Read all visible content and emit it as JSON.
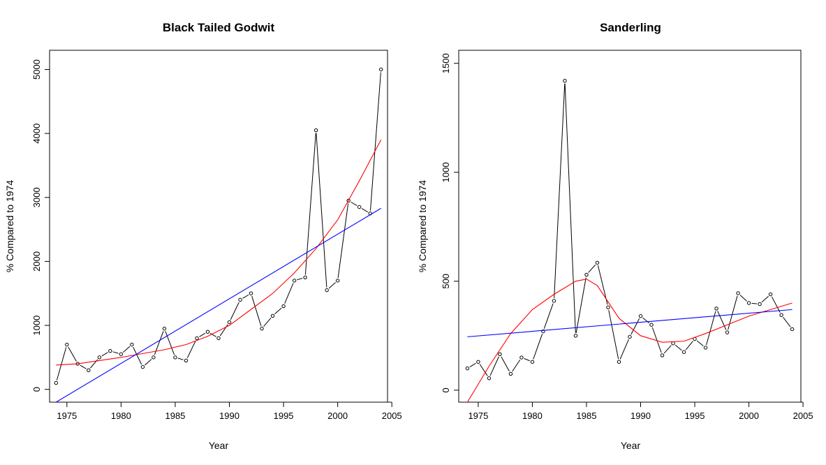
{
  "chart_data": [
    {
      "type": "line",
      "title": "Black Tailed Godwit",
      "xlabel": "Year",
      "ylabel": "% Compared to 1974",
      "xlim": [
        1973.4,
        2004.6
      ],
      "ylim": [
        -200,
        5300
      ],
      "xticks": [
        1975,
        1980,
        1985,
        1990,
        1995,
        2000,
        2005
      ],
      "yticks": [
        0,
        1000,
        2000,
        3000,
        4000,
        5000
      ],
      "grid": false,
      "observed": {
        "x": [
          1974,
          1975,
          1976,
          1977,
          1978,
          1979,
          1980,
          1981,
          1982,
          1983,
          1984,
          1985,
          1986,
          1987,
          1988,
          1989,
          1990,
          1991,
          1992,
          1993,
          1994,
          1995,
          1996,
          1997,
          1998,
          1999,
          2000,
          2001,
          2002,
          2003,
          2004
        ],
        "y": [
          100,
          700,
          400,
          300,
          500,
          600,
          550,
          700,
          350,
          500,
          950,
          500,
          450,
          800,
          900,
          800,
          1050,
          1400,
          1500,
          950,
          1150,
          1300,
          1700,
          1750,
          4050,
          1550,
          1700,
          2950,
          2850,
          2750,
          5000
        ],
        "color": "#000000"
      },
      "smooth": {
        "x": [
          1974,
          1976,
          1978,
          1980,
          1982,
          1984,
          1986,
          1988,
          1990,
          1992,
          1994,
          1996,
          1998,
          2000,
          2002,
          2004
        ],
        "y": [
          380,
          400,
          450,
          500,
          560,
          620,
          700,
          830,
          1000,
          1250,
          1500,
          1820,
          2200,
          2650,
          3260,
          3900
        ],
        "color": "#ff0000"
      },
      "linear": {
        "x": [
          1974,
          2004
        ],
        "y": [
          -200,
          2830
        ],
        "color": "#0000ff"
      }
    },
    {
      "type": "line",
      "title": "Sanderling",
      "xlabel": "Year",
      "ylabel": "% Compared to 1974",
      "xlim": [
        1973.2,
        2004.8
      ],
      "ylim": [
        -55,
        1560
      ],
      "xticks": [
        1975,
        1980,
        1985,
        1990,
        1995,
        2000,
        2005
      ],
      "yticks": [
        0,
        500,
        1000,
        1500
      ],
      "grid": false,
      "observed": {
        "x": [
          1974,
          1975,
          1976,
          1977,
          1978,
          1979,
          1980,
          1981,
          1982,
          1983,
          1984,
          1985,
          1986,
          1987,
          1988,
          1989,
          1990,
          1991,
          1992,
          1993,
          1994,
          1995,
          1996,
          1997,
          1998,
          1999,
          2000,
          2001,
          2002,
          2003,
          2004
        ],
        "y": [
          100,
          130,
          55,
          165,
          75,
          150,
          130,
          270,
          410,
          1420,
          250,
          530,
          585,
          380,
          130,
          245,
          340,
          300,
          160,
          215,
          175,
          235,
          195,
          375,
          265,
          445,
          400,
          395,
          440,
          345,
          280
        ],
        "color": "#000000"
      },
      "smooth": {
        "x": [
          1974,
          1976,
          1978,
          1980,
          1982,
          1984,
          1985,
          1986,
          1988,
          1990,
          1992,
          1994,
          1996,
          1998,
          2000,
          2002,
          2004
        ],
        "y": [
          -55,
          110,
          260,
          370,
          440,
          500,
          510,
          480,
          330,
          250,
          220,
          225,
          260,
          300,
          340,
          370,
          400
        ],
        "color": "#ff0000"
      },
      "linear": {
        "x": [
          1974,
          2004
        ],
        "y": [
          245,
          370
        ],
        "color": "#0000ff"
      }
    }
  ]
}
